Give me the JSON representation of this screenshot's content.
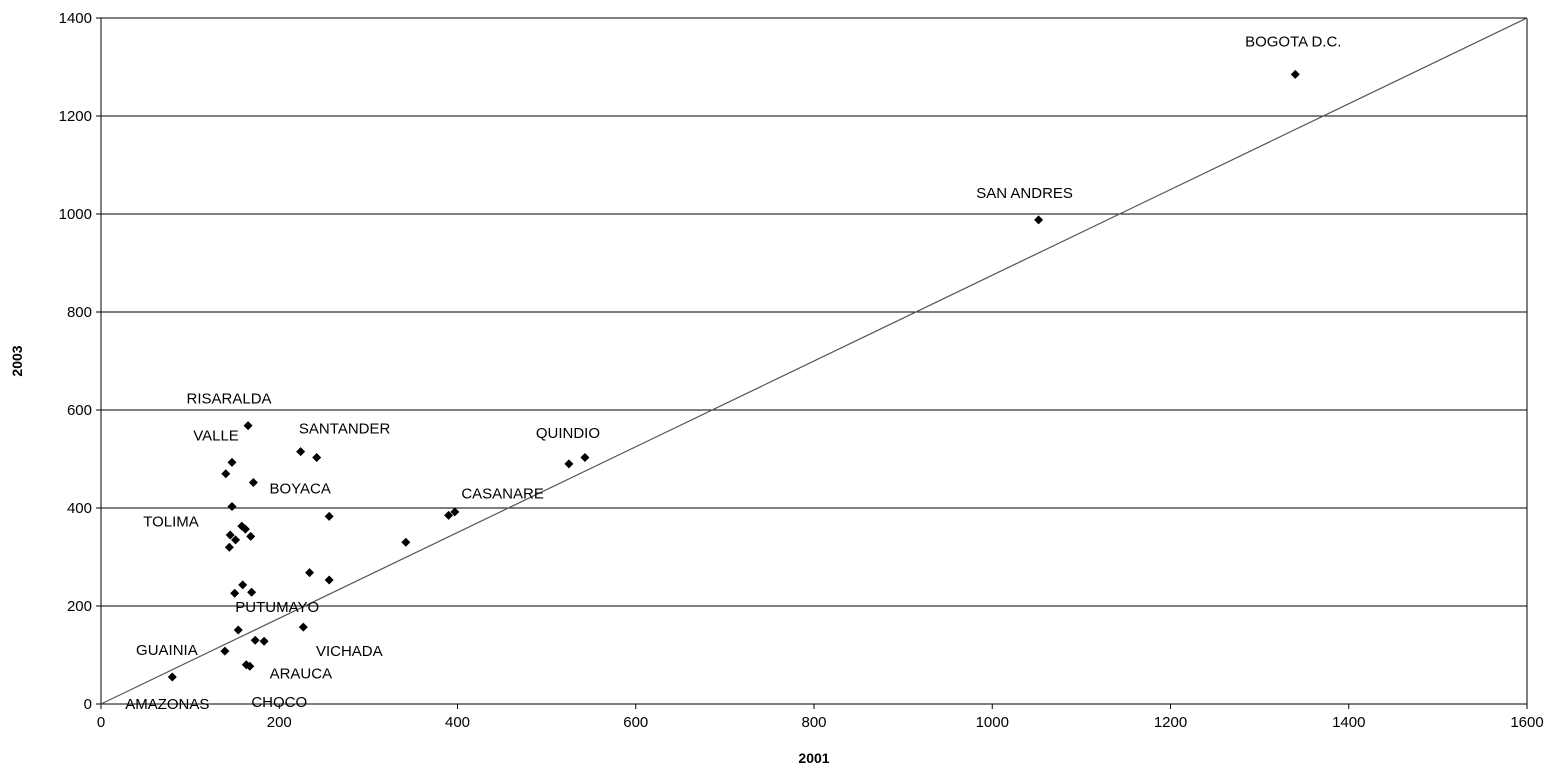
{
  "chart_data": {
    "type": "scatter",
    "title": "",
    "xlabel": "2001",
    "ylabel": "2003",
    "xlim": [
      0,
      1600
    ],
    "ylim": [
      0,
      1400
    ],
    "xticks": [
      "0",
      "200",
      "400",
      "600",
      "800",
      "1000",
      "1200",
      "1400",
      "1600"
    ],
    "yticks": [
      "0",
      "200",
      "400",
      "600",
      "800",
      "1000",
      "1200",
      "1400"
    ],
    "grid": "horizontal",
    "reference_line": {
      "from": [
        0,
        0
      ],
      "to": [
        1600,
        1400
      ]
    },
    "series": [
      {
        "marker": "diamond",
        "points": [
          {
            "x": 1340,
            "y": 1285,
            "label": "BOGOTA D.C."
          },
          {
            "x": 1052,
            "y": 988,
            "label": "SAN ANDRES"
          },
          {
            "x": 165,
            "y": 568,
            "label": "RISARALDA"
          },
          {
            "x": 147,
            "y": 493,
            "label": "VALLE"
          },
          {
            "x": 140,
            "y": 470
          },
          {
            "x": 171,
            "y": 452
          },
          {
            "x": 224,
            "y": 515,
            "label": "SANTANDER"
          },
          {
            "x": 242,
            "y": 503
          },
          {
            "x": 525,
            "y": 490,
            "label": "QUINDIO"
          },
          {
            "x": 543,
            "y": 503
          },
          {
            "x": 256,
            "y": 383,
            "label": "BOYACA"
          },
          {
            "x": 390,
            "y": 385,
            "label": "CASANARE"
          },
          {
            "x": 397,
            "y": 392
          },
          {
            "x": 147,
            "y": 403,
            "label": "TOLIMA"
          },
          {
            "x": 158,
            "y": 363
          },
          {
            "x": 162,
            "y": 357
          },
          {
            "x": 145,
            "y": 345
          },
          {
            "x": 151,
            "y": 335
          },
          {
            "x": 144,
            "y": 320
          },
          {
            "x": 168,
            "y": 342
          },
          {
            "x": 342,
            "y": 330
          },
          {
            "x": 234,
            "y": 268
          },
          {
            "x": 256,
            "y": 253
          },
          {
            "x": 159,
            "y": 243
          },
          {
            "x": 150,
            "y": 226
          },
          {
            "x": 169,
            "y": 228
          },
          {
            "x": 227,
            "y": 157,
            "label": "VICHADA"
          },
          {
            "x": 154,
            "y": 151,
            "label": "PUTUMAYO"
          },
          {
            "x": 173,
            "y": 130
          },
          {
            "x": 183,
            "y": 128
          },
          {
            "x": 139,
            "y": 108,
            "label": "GUAINIA"
          },
          {
            "x": 167,
            "y": 77,
            "label": "ARAUCA"
          },
          {
            "x": 163,
            "y": 80,
            "label": "CHOCO"
          },
          {
            "x": 80,
            "y": 55,
            "label": "AMAZONAS"
          }
        ]
      }
    ]
  }
}
